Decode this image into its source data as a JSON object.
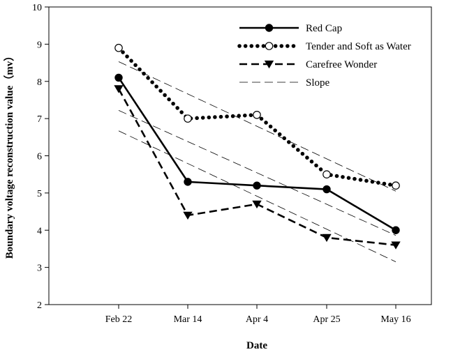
{
  "chart_data": {
    "type": "line",
    "xlabel": "Date",
    "ylabel": "Boundary voltage reconstruction value（mv）",
    "categories": [
      "Feb 22",
      "Mar 14",
      "Apr 4",
      "Apr 25",
      "May 16"
    ],
    "ylim": [
      2,
      10
    ],
    "yticks": [
      2,
      3,
      4,
      5,
      6,
      7,
      8,
      9,
      10
    ],
    "grid": false,
    "legend_position": "top-right",
    "series": [
      {
        "name": "Red Cap",
        "style": "solid",
        "marker": "filled-circle",
        "color": "#000000",
        "values": [
          8.1,
          5.3,
          5.2,
          5.1,
          4.0
        ]
      },
      {
        "name": "Tender and Soft as Water",
        "style": "dotted",
        "marker": "open-circle",
        "color": "#000000",
        "values": [
          8.9,
          7.0,
          7.1,
          5.5,
          5.2
        ]
      },
      {
        "name": "Carefree Wonder",
        "style": "dashed",
        "marker": "filled-triangle-down",
        "color": "#000000",
        "values": [
          7.8,
          4.4,
          4.7,
          3.8,
          3.6
        ]
      },
      {
        "name": "Slope",
        "style": "thin-dashed",
        "marker": "none",
        "color": "#000000"
      }
    ],
    "trendlines": [
      {
        "series": "Red Cap",
        "values": [
          7.22,
          6.38,
          5.54,
          4.7,
          3.86
        ]
      },
      {
        "series": "Tender and Soft as Water",
        "values": [
          8.53,
          7.66,
          6.79,
          5.92,
          5.05
        ]
      },
      {
        "series": "Carefree Wonder",
        "values": [
          6.67,
          5.79,
          4.91,
          4.03,
          3.15
        ]
      }
    ]
  }
}
